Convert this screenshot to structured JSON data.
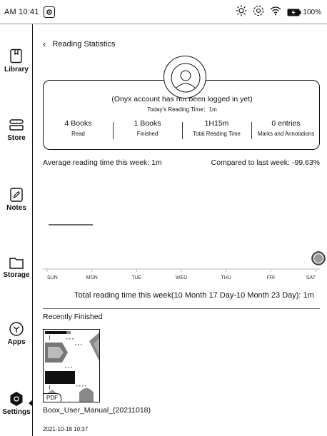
{
  "status_bar": {
    "time": "AM 10:41",
    "battery_percent": "100%"
  },
  "sidebar": {
    "items": [
      {
        "label": "Library",
        "icon": "library-icon"
      },
      {
        "label": "Store",
        "icon": "store-icon"
      },
      {
        "label": "Notes",
        "icon": "notes-icon"
      },
      {
        "label": "Storage",
        "icon": "storage-icon"
      },
      {
        "label": "Apps",
        "icon": "apps-icon"
      },
      {
        "label": "Settings",
        "icon": "settings-icon",
        "active": true
      }
    ]
  },
  "header": {
    "title": "Reading Statistics"
  },
  "account": {
    "status": "(Onyx account has not been logged in yet)",
    "today_reading": "Today's Reading Time：1m"
  },
  "stats": [
    {
      "value": "4 Books",
      "label": "Read"
    },
    {
      "value": "1 Books",
      "label": "Finished"
    },
    {
      "value": "1H15m",
      "label": "Total Reading Time"
    },
    {
      "value": "0 entries",
      "label": "Marks and Annotations"
    }
  ],
  "week": {
    "average": "Average reading time this week: 1m",
    "compared": "Compared to last week: -99.63%",
    "total": "Total reading time this week(10 Month 17 Day-10 Month 23 Day): 1m"
  },
  "chart_data": {
    "type": "bar",
    "categories": [
      "SUN",
      "MON",
      "TUE",
      "WED",
      "THU",
      "FRI",
      "SAT"
    ],
    "values": [
      0,
      0,
      0,
      0,
      0,
      0,
      1
    ],
    "average_line": 1,
    "unit": "m"
  },
  "recent": {
    "title": "Recently Finished",
    "books": [
      {
        "title": "Boox_User_Manual_(20211018)",
        "date": "2021-10-18 10:37",
        "format": "PDF"
      }
    ]
  }
}
